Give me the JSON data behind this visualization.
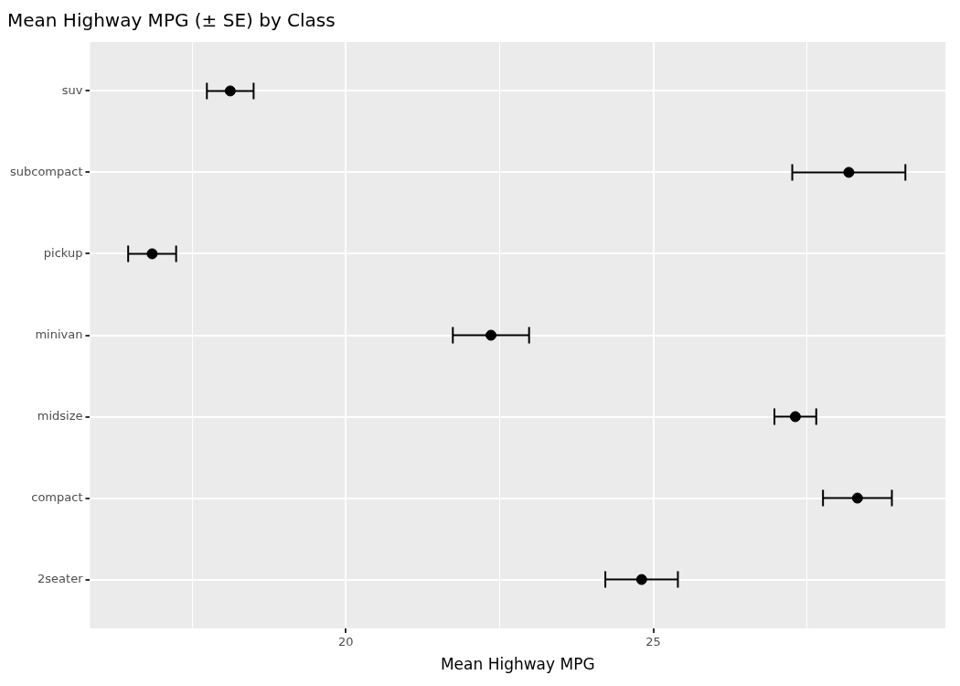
{
  "chart_data": {
    "type": "scatter",
    "orientation": "horizontal",
    "title": "Mean Highway MPG (± SE) by Class",
    "xlabel": "Mean Highway MPG",
    "categories": [
      "suv",
      "subcompact",
      "pickup",
      "minivan",
      "midsize",
      "compact",
      "2seater"
    ],
    "values": [
      18.12,
      28.18,
      16.85,
      22.36,
      27.31,
      28.32,
      24.81
    ],
    "errors": [
      0.38,
      0.92,
      0.39,
      0.62,
      0.34,
      0.56,
      0.59
    ],
    "color": "#000000",
    "marker": "circle",
    "xlim": [
      15.84,
      29.75
    ],
    "xticks": [
      {
        "value": 17.5,
        "label": null
      },
      20,
      {
        "value": 22.5,
        "label": null
      },
      25,
      {
        "value": 27.5,
        "label": null
      }
    ],
    "grid": true
  }
}
